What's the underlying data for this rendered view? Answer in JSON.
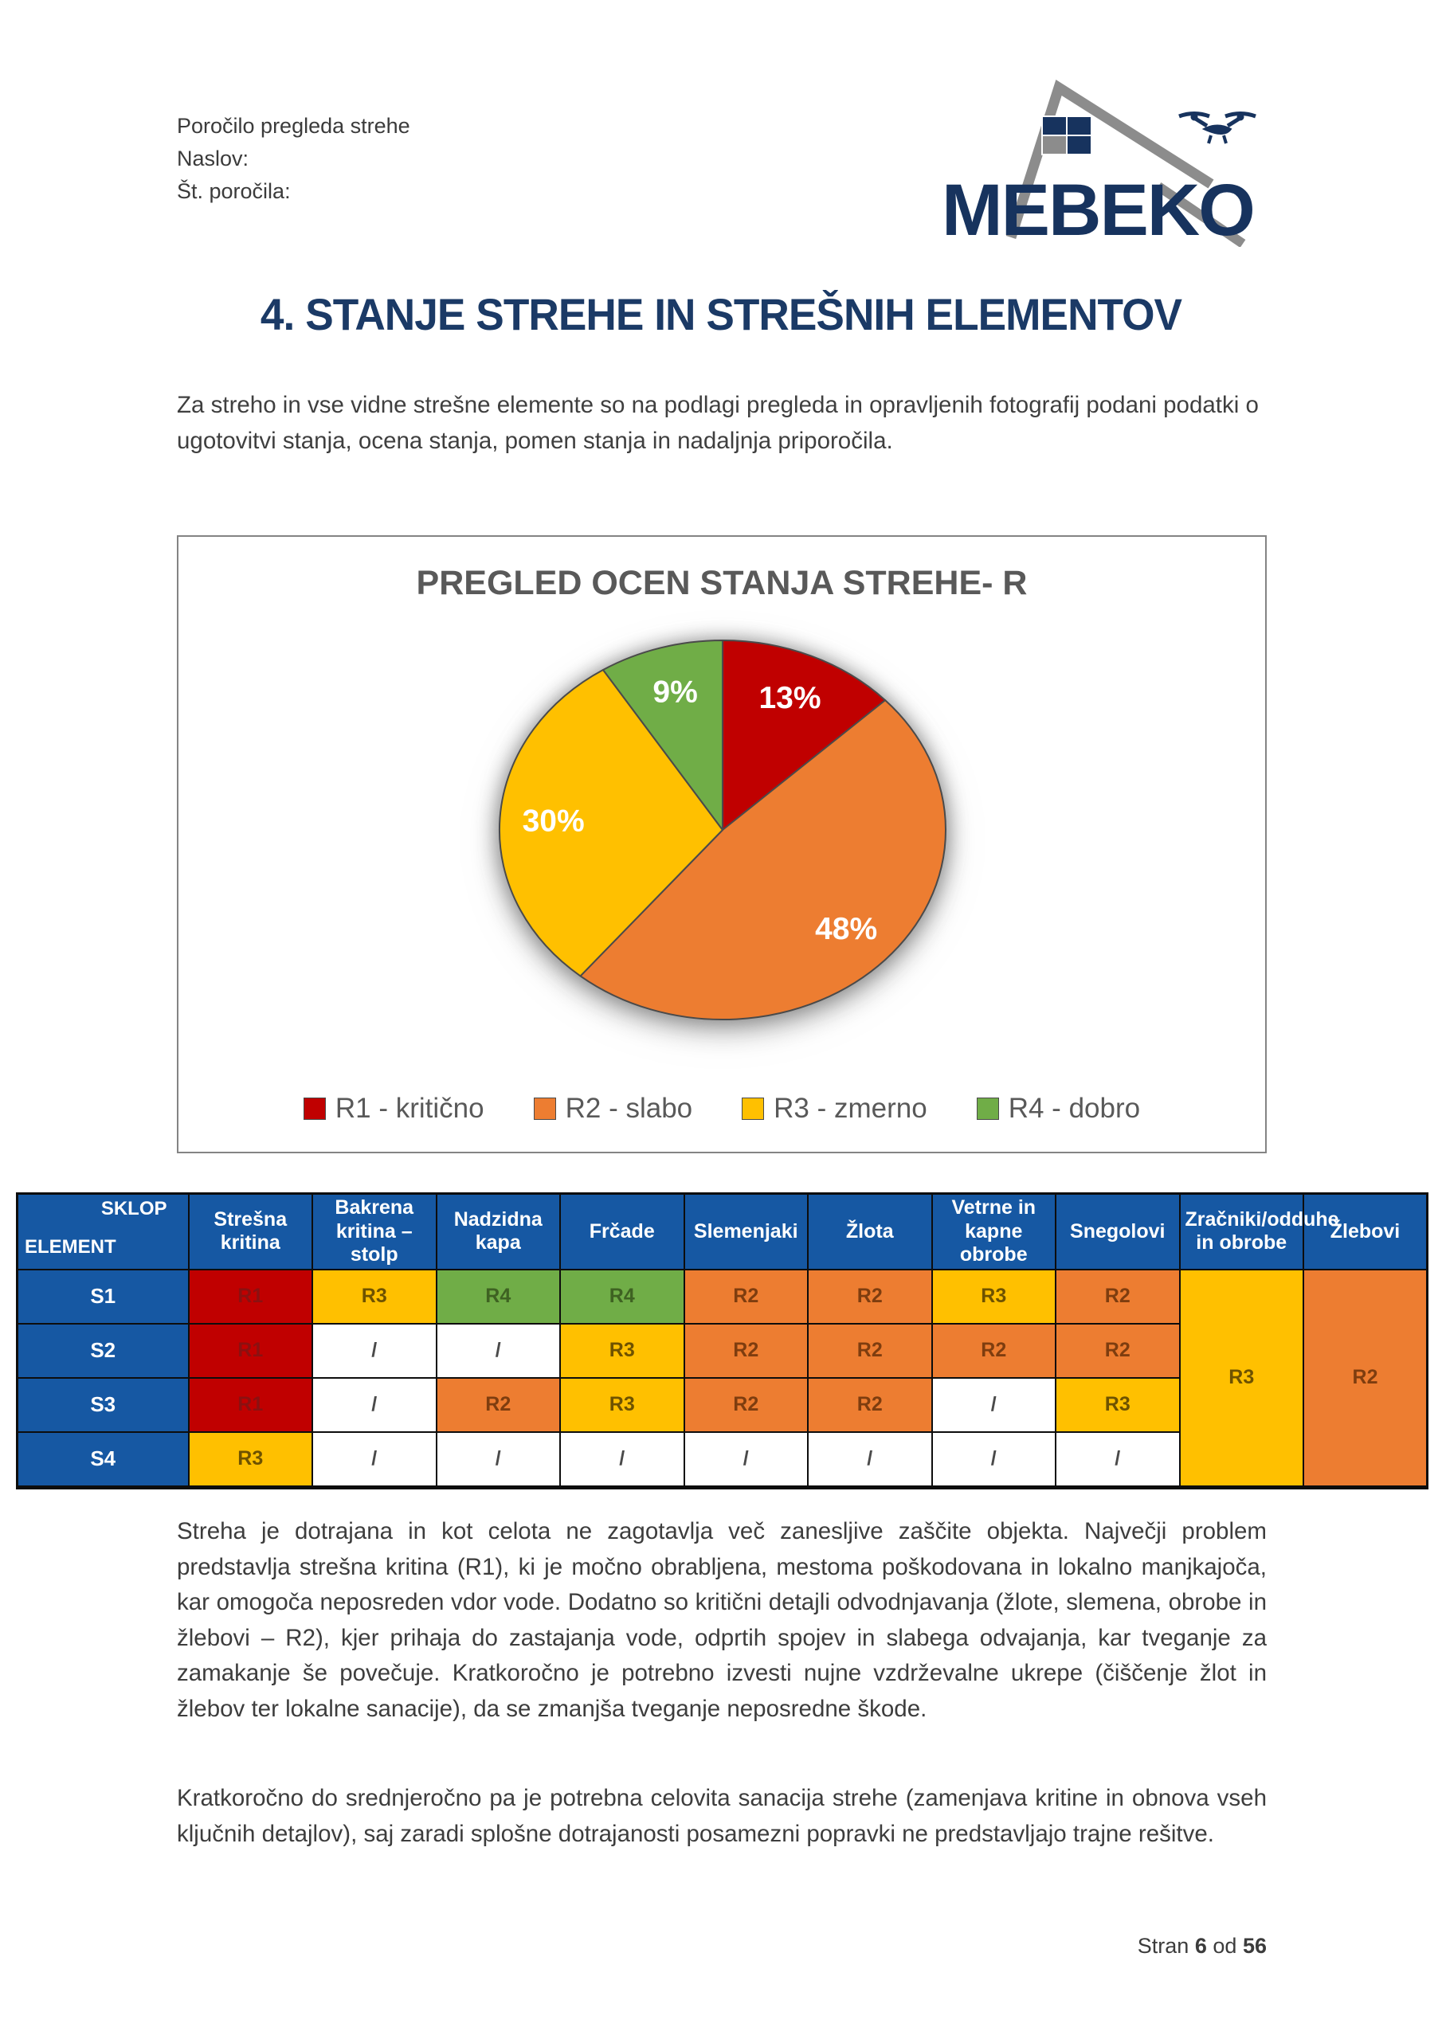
{
  "header": {
    "line1": "Poročilo pregleda strehe",
    "line2": "Naslov:",
    "line3": "Št. poročila:",
    "logo_text": "MEBEKO"
  },
  "title": "4. STANJE STREHE IN STREŠNIH ELEMENTOV",
  "intro": "Za streho in vse vidne strešne elemente so na podlagi pregleda in opravljenih fotografij podani podatki o ugotovitvi stanja, ocena stanja, pomen stanja in nadaljnja priporočila.",
  "chart_data": {
    "type": "pie",
    "title": "PREGLED OCEN STANJA STREHE- R",
    "legend_position": "bottom",
    "direction": "clockwise",
    "start_angle_deg": 0,
    "slices": [
      {
        "label": "R1 - kritično",
        "value": 13,
        "data_label": "13%",
        "color": "#c00000"
      },
      {
        "label": "R2 - slabo",
        "value": 48,
        "data_label": "48%",
        "color": "#ed7d31"
      },
      {
        "label": "R3 - zmerno",
        "value": 30,
        "data_label": "30%",
        "color": "#ffc000"
      },
      {
        "label": "R4 - dobro",
        "value": 9,
        "data_label": "9%",
        "color": "#70ad47"
      }
    ]
  },
  "table": {
    "corner": {
      "top": "SKLOP",
      "bottom": "ELEMENT"
    },
    "columns": [
      "Strešna kritina",
      "Bakrena kritina – stolp",
      "Nadzidna kapa",
      "Frčade",
      "Slemenjaki",
      "Žlota",
      "Vetrne in kapne obrobe",
      "Snegolovi",
      "Zračniki/odduhe in obrobe",
      "Žlebovi"
    ],
    "rows": [
      {
        "element": "S1",
        "cells": [
          "R1",
          "R3",
          "R4",
          "R4",
          "R2",
          "R2",
          "R3",
          "R2"
        ]
      },
      {
        "element": "S2",
        "cells": [
          "R1",
          "/",
          "/",
          "R3",
          "R2",
          "R2",
          "R2",
          "R2"
        ]
      },
      {
        "element": "S3",
        "cells": [
          "R1",
          "/",
          "R2",
          "R3",
          "R2",
          "R2",
          "/",
          "R3"
        ]
      },
      {
        "element": "S4",
        "cells": [
          "R3",
          "/",
          "/",
          "/",
          "/",
          "/",
          "/",
          "/"
        ]
      }
    ],
    "merged_cells": [
      {
        "column": "Zračniki/odduhe in obrobe",
        "value": "R3",
        "spans_rows": [
          "S1",
          "S2",
          "S3",
          "S4"
        ]
      },
      {
        "column": "Žlebovi",
        "value": "R2",
        "spans_rows": [
          "S1",
          "S2",
          "S3",
          "S4"
        ]
      }
    ],
    "rating_styles": {
      "R1": {
        "bg": "#c00000",
        "fg": "#8a1111"
      },
      "R2": {
        "bg": "#ed7d31",
        "fg": "#7e3d0f"
      },
      "R3": {
        "bg": "#ffc000",
        "fg": "#6e5200"
      },
      "R4": {
        "bg": "#70ad47",
        "fg": "#3e6222"
      },
      "/": {
        "bg": "#ffffff",
        "fg": "#4a4a4a"
      }
    }
  },
  "paragraphs": [
    "Streha je dotrajana in kot celota ne zagotavlja več zanesljive zaščite objekta. Največji problem predstavlja strešna kritina (R1), ki je močno obrabljena, mestoma poškodovana in lokalno manjkajoča, kar omogoča neposreden vdor vode. Dodatno so kritični detajli odvodnjavanja (žlote, slemena, obrobe in žlebovi – R2), kjer prihaja do zastajanja vode, odprtih spojev in slabega odvajanja, kar tveganje za zamakanje še povečuje. Kratkoročno je potrebno izvesti nujne vzdrževalne ukrepe (čiščenje žlot in žlebov ter lokalne sanacije), da se zmanjša tveganje neposredne škode.",
    "Kratkoročno do srednjeročno pa je potrebna celovita sanacija strehe (zamenjava kritine in obnova vseh ključnih detajlov), saj zaradi splošne dotrajanosti posamezni popravki ne predstavljajo trajne rešitve."
  ],
  "footer": {
    "prefix": "Stran",
    "page": "6",
    "conjunction": "od",
    "total": "56"
  }
}
